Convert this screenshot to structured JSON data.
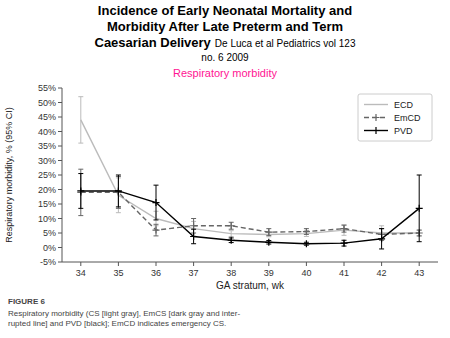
{
  "chart_data": {
    "type": "line",
    "title": [
      "Incidence of Early Neonatal Mortality and",
      "Morbidity After Late Preterm and Term",
      "Caesarian Delivery"
    ],
    "subtitle": "Respiratory morbidity",
    "subtitle_color": "#ff1493",
    "annotations": [
      "De Luca et al Pediatrics  vol  123",
      "no.  6   2009",
      "FIGURE 6",
      "Respiratory morbidity (CS [light gray], EmCS [dark gray and inter-\nrupted line] and PVD [black]; EmCD indicates emergency CS."
    ],
    "x_label": "GA stratum, wk",
    "y_label": "Respiratory morbidity, % (95% CI)",
    "x": [
      34,
      35,
      36,
      37,
      38,
      39,
      40,
      41,
      42,
      43
    ],
    "xlim": [
      33.5,
      43.5
    ],
    "xticks": [
      34,
      35,
      36,
      37,
      38,
      39,
      40,
      41,
      42,
      43
    ],
    "ylim": [
      -0.05,
      0.55
    ],
    "yticks": [
      {
        "value": -0.05,
        "label": "-5%"
      },
      {
        "value": 0,
        "label": "0%"
      },
      {
        "value": 0.05,
        "label": "5%"
      },
      {
        "value": 0.1,
        "label": "10%"
      },
      {
        "value": 0.15,
        "label": "15%"
      },
      {
        "value": 0.2,
        "label": "20%"
      },
      {
        "value": 0.25,
        "label": "25%"
      },
      {
        "value": 0.3,
        "label": "30%"
      },
      {
        "value": 0.35,
        "label": "35%"
      },
      {
        "value": 0.4,
        "label": "40%"
      },
      {
        "value": 0.45,
        "label": "45%"
      },
      {
        "value": 0.5,
        "label": "50%"
      },
      {
        "value": 0.55,
        "label": "55%"
      }
    ],
    "grid": false,
    "legend": "upper right",
    "series": [
      {
        "name": "ECD",
        "color": "#bbbbbb",
        "line_style": "solid",
        "marker": "none",
        "values": [
          0.44,
          0.18,
          0.1,
          0.065,
          0.048,
          0.045,
          0.048,
          0.06,
          0.05,
          0.05
        ],
        "errors": [
          0.08,
          0.06,
          0.025,
          0.025,
          0.01,
          0.008,
          0.01,
          0.018,
          0.025,
          0.01
        ]
      },
      {
        "name": "EmCD",
        "color": "#666666",
        "line_style": "dashed",
        "marker": "plus",
        "values": [
          0.19,
          0.19,
          0.06,
          0.075,
          0.075,
          0.053,
          0.055,
          0.065,
          0.045,
          0.05
        ],
        "errors": [
          0.08,
          0.055,
          0.02,
          0.025,
          0.012,
          0.012,
          0.01,
          0.012,
          0.02,
          0.01
        ]
      },
      {
        "name": "PVD",
        "color": "#000000",
        "line_style": "solid",
        "marker": "plus",
        "values": [
          0.195,
          0.195,
          0.155,
          0.038,
          0.025,
          0.018,
          0.013,
          0.015,
          0.03,
          0.135
        ],
        "errors": [
          0.06,
          0.055,
          0.06,
          0.025,
          0.008,
          0.006,
          0.005,
          0.01,
          0.035,
          0.115
        ]
      }
    ]
  }
}
